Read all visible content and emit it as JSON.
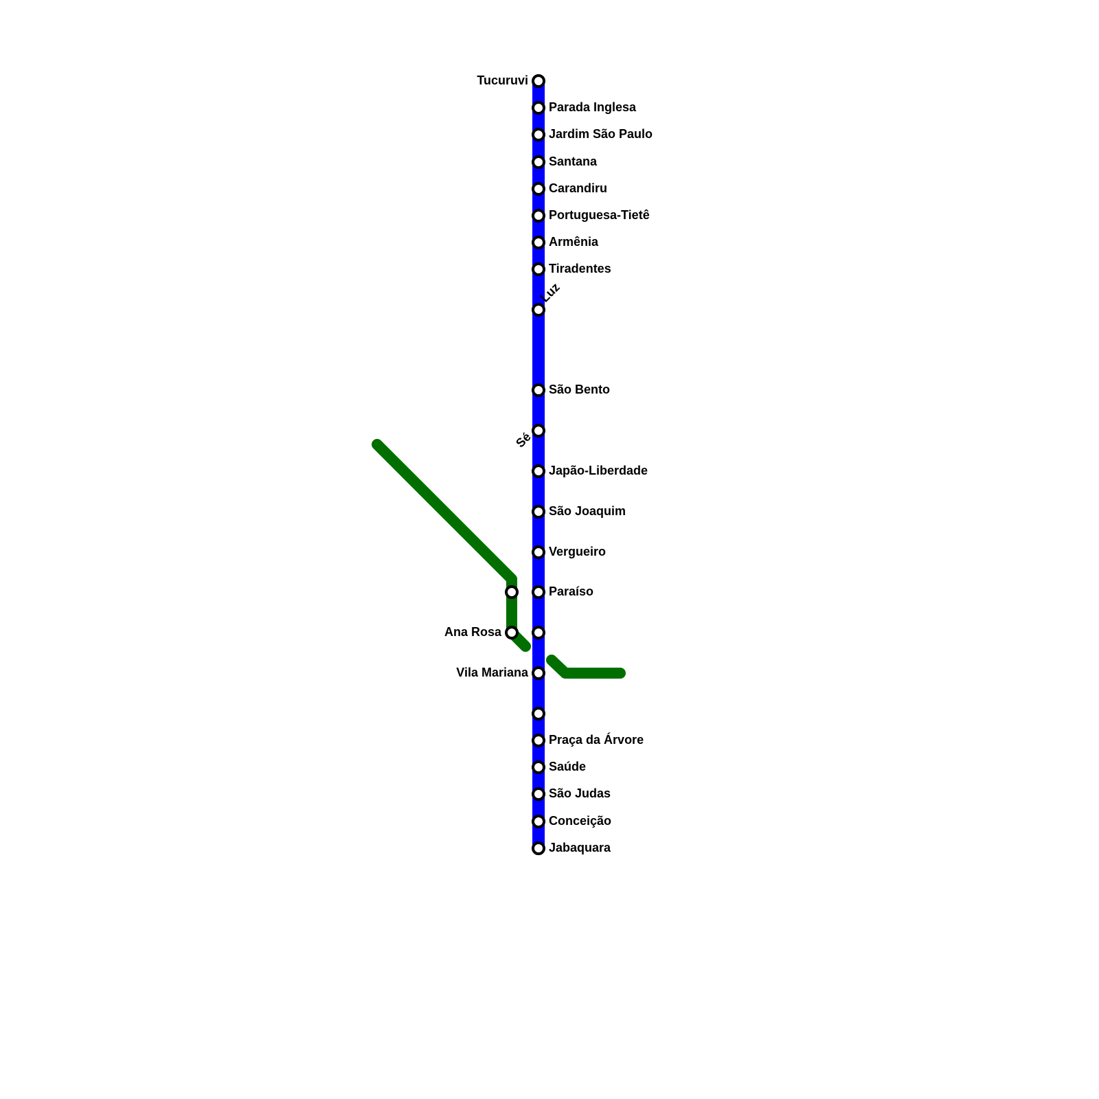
{
  "colors": {
    "blue_line": "#0000ff",
    "green_line": "#006f00",
    "station_fill": "#ffffff",
    "station_stroke": "#000000"
  },
  "blue_line": {
    "stations": [
      {
        "name": "Tucuruvi"
      },
      {
        "name": "Parada Inglesa"
      },
      {
        "name": "Jardim São Paulo"
      },
      {
        "name": "Santana"
      },
      {
        "name": "Carandiru"
      },
      {
        "name": "Portuguesa-Tietê"
      },
      {
        "name": "Armênia"
      },
      {
        "name": "Tiradentes"
      },
      {
        "name": "Luz"
      },
      {
        "name": "São Bento"
      },
      {
        "name": "Sé"
      },
      {
        "name": "Japão-Liberdade"
      },
      {
        "name": "São Joaquim"
      },
      {
        "name": "Vergueiro"
      },
      {
        "name": "Paraíso"
      },
      {
        "name": ""
      },
      {
        "name": "Vila Mariana"
      },
      {
        "name": ""
      },
      {
        "name": "Praça da Árvore"
      },
      {
        "name": "Saúde"
      },
      {
        "name": "São Judas"
      },
      {
        "name": "Conceição"
      },
      {
        "name": "Jabaquara"
      }
    ]
  },
  "green_line": {
    "stations": [
      {
        "name": ""
      },
      {
        "name": "Ana Rosa"
      }
    ]
  }
}
